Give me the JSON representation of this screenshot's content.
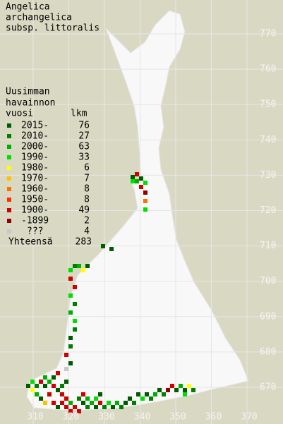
{
  "title": [
    "Angelica",
    "archangelica",
    "subsp. littoralis"
  ],
  "legend": {
    "header": [
      "Uusimman",
      "havainnon"
    ],
    "col_year": "vuosi",
    "col_count": "lkm",
    "items": [
      {
        "label": "2015-",
        "count": 76,
        "color": "#005a00"
      },
      {
        "label": "2010-",
        "count": 27,
        "color": "#008000"
      },
      {
        "label": "2000-",
        "count": 63,
        "color": "#00b000"
      },
      {
        "label": "1990-",
        "count": 33,
        "color": "#00e000"
      },
      {
        "label": "1980-",
        "count": 6,
        "color": "#ffff00"
      },
      {
        "label": "1970-",
        "count": 7,
        "color": "#ffc000"
      },
      {
        "label": "1960-",
        "count": 8,
        "color": "#ff7000"
      },
      {
        "label": "1950-",
        "count": 8,
        "color": "#ff3000"
      },
      {
        "label": "1900-",
        "count": 49,
        "color": "#d00000"
      },
      {
        "label": "-1899",
        "count": 2,
        "color": "#900000"
      },
      {
        "label": "???",
        "count": 4,
        "color": "#c8c8c8"
      }
    ],
    "total_label": "Yhteensä",
    "total": 283
  },
  "y_axis_labels": [
    770,
    760,
    750,
    740,
    730,
    720,
    710,
    700,
    690,
    680,
    670
  ],
  "x_axis_labels": [
    310,
    320,
    330,
    340,
    350,
    360,
    370
  ]
}
